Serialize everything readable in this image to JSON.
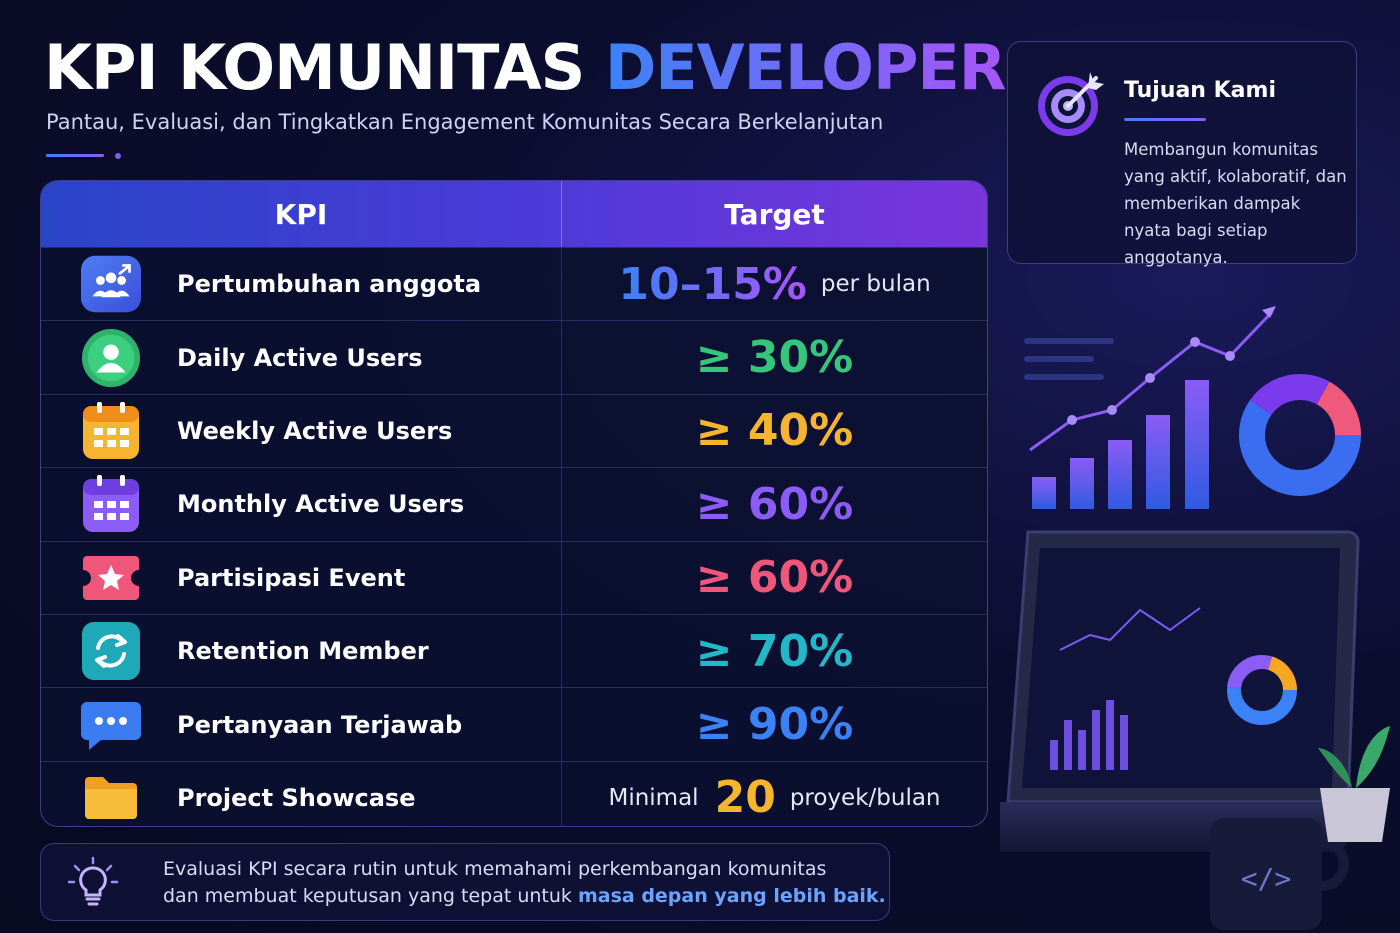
{
  "header": {
    "title_main": "KPI KOMUNITAS",
    "title_highlight": "DEVELOPER",
    "subtitle": "Pantau, Evaluasi, dan Tingkatkan Engagement Komunitas Secara Berkelanjutan"
  },
  "table": {
    "col_kpi": "KPI",
    "col_target": "Target",
    "rows": [
      {
        "name": "Pertumbuhan anggota",
        "value": "10–15%",
        "suffix": "per bulan",
        "color": "#5a7cf0",
        "icon": "people-growth-icon"
      },
      {
        "name": "Daily Active Users",
        "value": "≥ 30%",
        "color": "#34c77b",
        "icon": "user-icon"
      },
      {
        "name": "Weekly Active Users",
        "value": "≥ 40%",
        "color": "#f5b531",
        "icon": "calendar-icon"
      },
      {
        "name": "Monthly Active Users",
        "value": "≥ 60%",
        "color": "#8b5cf6",
        "icon": "calendar-icon"
      },
      {
        "name": "Partisipasi Event",
        "value": "≥ 60%",
        "color": "#f0567a",
        "icon": "ticket-star-icon"
      },
      {
        "name": "Retention Member",
        "value": "≥ 70%",
        "color": "#22b8c8",
        "icon": "refresh-icon"
      },
      {
        "name": "Pertanyaan Terjawab",
        "value": "≥ 90%",
        "color": "#3b82f6",
        "icon": "chat-bubble-icon"
      },
      {
        "name": "Project Showcase",
        "prefix": "Minimal",
        "value": "20",
        "suffix": "proyek/bulan",
        "color": "#f5b531",
        "icon": "folder-icon"
      }
    ]
  },
  "note": {
    "line1": "Evaluasi KPI secara rutin untuk memahami perkembangan komunitas",
    "line2_prefix": "dan membuat keputusan yang tepat untuk",
    "line2_highlight": "masa depan yang lebih baik."
  },
  "goal": {
    "title": "Tujuan Kami",
    "text": "Membangun komunitas yang aktif, kolaboratif, dan memberikan dampak nyata bagi setiap anggotanya.",
    "icon": "target-icon"
  },
  "illustration": {
    "code_symbol": "</>"
  }
}
